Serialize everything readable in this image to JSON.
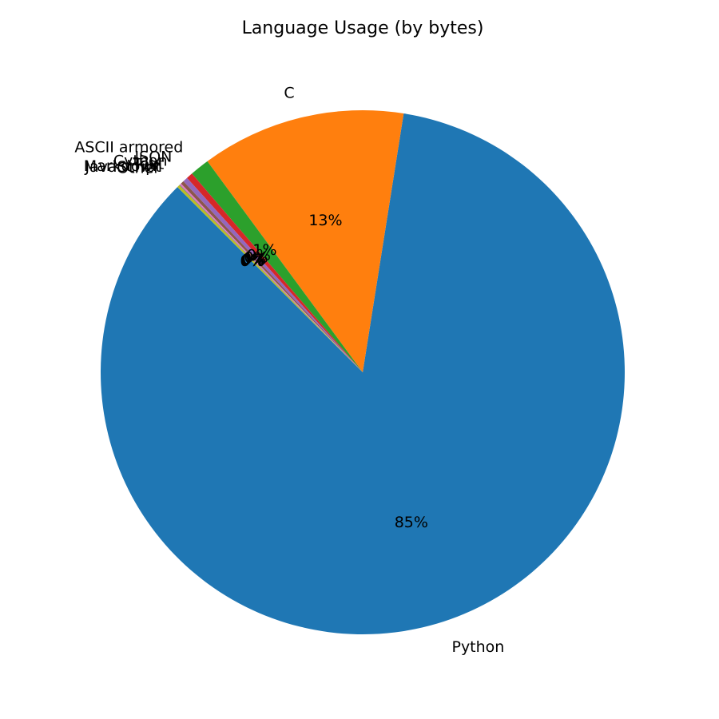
{
  "chart_data": {
    "type": "pie",
    "title": "Language Usage (by bytes)",
    "start_angle_deg": 135,
    "counterclockwise": true,
    "slices": [
      {
        "label": "Python",
        "value": 85.0,
        "pct_label": "85%",
        "color": "#1f77b4"
      },
      {
        "label": "C",
        "value": 12.6,
        "pct_label": "13%",
        "color": "#ff7f0e"
      },
      {
        "label": "ASCII armored",
        "value": 1.2,
        "pct_label": "1%",
        "color": "#2ca02c"
      },
      {
        "label": "JSON",
        "value": 0.4,
        "pct_label": "0%",
        "color": "#d62728"
      },
      {
        "label": "Cython",
        "value": 0.3,
        "pct_label": "0%",
        "color": "#9467bd"
      },
      {
        "label": "Text",
        "value": 0.2,
        "pct_label": "0%",
        "color": "#8c564b"
      },
      {
        "label": "Markdown",
        "value": 0.1,
        "pct_label": "0%",
        "color": "#e377c2"
      },
      {
        "label": "JavaScript",
        "value": 0.05,
        "pct_label": "0%",
        "color": "#7f7f7f"
      },
      {
        "label": "Other",
        "value": 0.15,
        "pct_label": "0%",
        "color": "#bcbd22"
      }
    ]
  }
}
